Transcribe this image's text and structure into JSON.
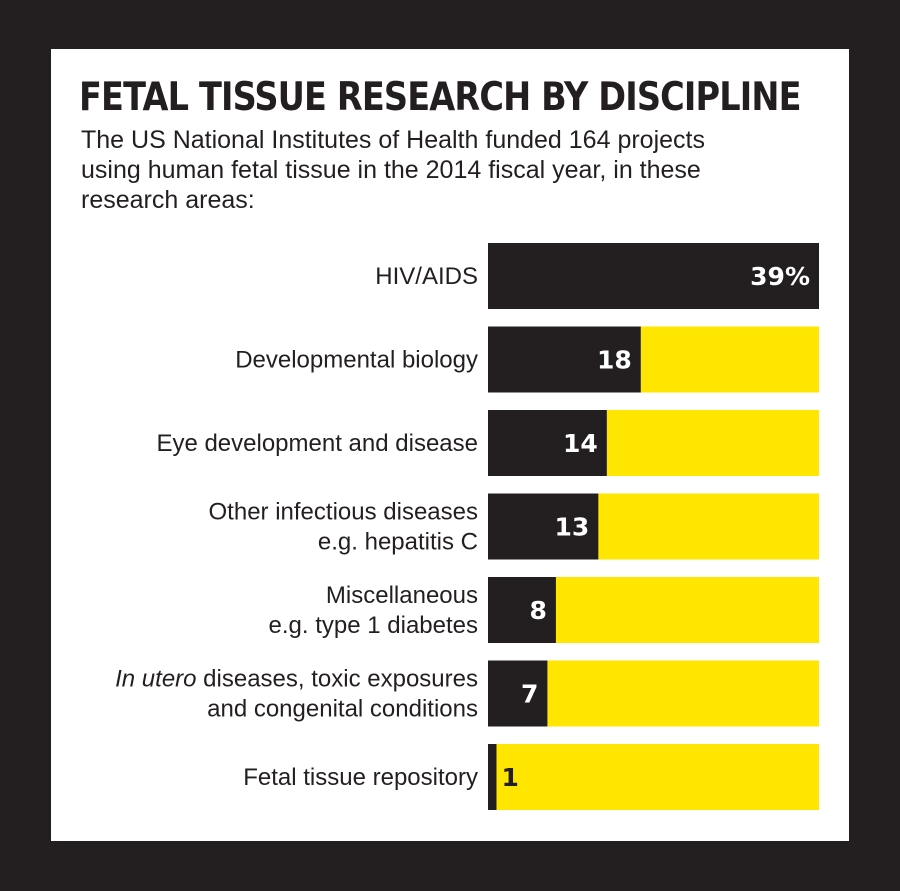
{
  "chart_data": {
    "type": "bar",
    "orientation": "horizontal",
    "stacked_to_100": true,
    "title": "FETAL TISSUE RESEARCH BY DISCIPLINE",
    "subtitle_lines": [
      "The US National Institutes of Health funded 164 projects",
      "using human fetal tissue in the 2014 fiscal year, in these",
      "research areas:"
    ],
    "categories": [
      {
        "lines": [
          "HIV/AIDS"
        ],
        "italic_prefix": ""
      },
      {
        "lines": [
          "Developmental biology"
        ],
        "italic_prefix": ""
      },
      {
        "lines": [
          "Eye development and disease"
        ],
        "italic_prefix": ""
      },
      {
        "lines": [
          "Other infectious diseases",
          "e.g. hepatitis C"
        ],
        "italic_prefix": ""
      },
      {
        "lines": [
          "Miscellaneous",
          "e.g. type 1 diabetes"
        ],
        "italic_prefix": ""
      },
      {
        "lines": [
          " diseases, toxic exposures",
          "and congenital conditions"
        ],
        "italic_prefix": "In utero"
      },
      {
        "lines": [
          "Fetal tissue repository"
        ],
        "italic_prefix": ""
      }
    ],
    "values": [
      39,
      18,
      14,
      13,
      8,
      7,
      1
    ],
    "value_labels": [
      "39%",
      "18",
      "14",
      "13",
      "8",
      "7",
      "1"
    ],
    "xlim": [
      0,
      39
    ],
    "unit": "%",
    "colors": {
      "value": "#231f20",
      "remainder": "#ffe600",
      "background": "#ffffff",
      "frame": "#231f20"
    },
    "grid": false,
    "legend": "none"
  }
}
